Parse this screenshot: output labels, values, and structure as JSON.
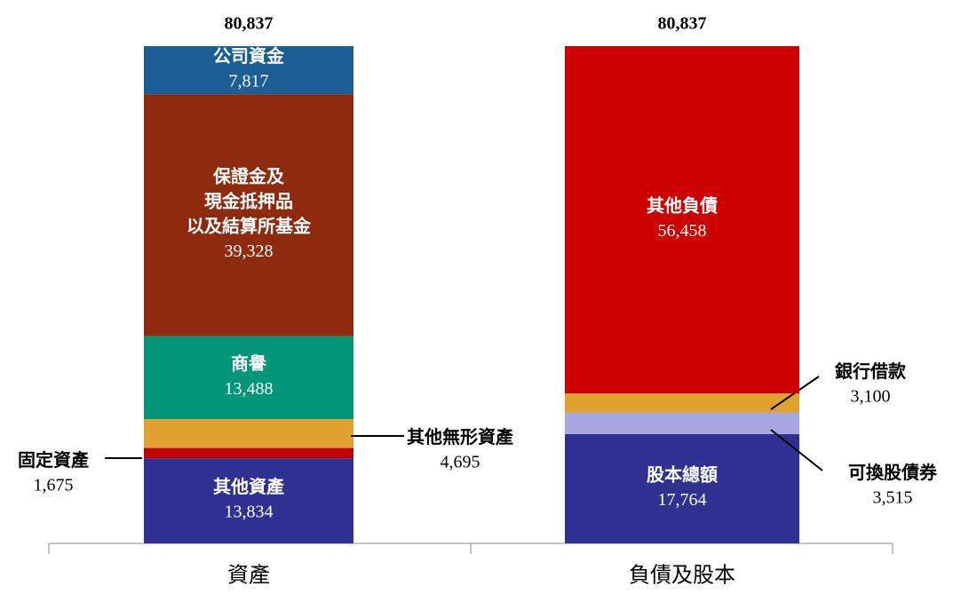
{
  "chart_data": {
    "type": "stacked_bar",
    "categories": [
      "資產",
      "負債及股本"
    ],
    "totals": [
      80837,
      80837
    ],
    "total_labels": [
      "80,837",
      "80,837"
    ],
    "ylim": [
      0,
      80837
    ],
    "series": [
      {
        "name": "其他資產",
        "color": "#2e3192",
        "values": [
          13834,
          null
        ],
        "value_labels": [
          "13,834",
          null
        ]
      },
      {
        "name": "固定資產",
        "color": "#c00000",
        "values": [
          1675,
          null
        ],
        "value_labels": [
          "1,675",
          null
        ]
      },
      {
        "name": "其他無形資產",
        "color": "#e0a22e",
        "values": [
          4695,
          null
        ],
        "value_labels": [
          "4,695",
          null
        ]
      },
      {
        "name": "商譽",
        "color": "#009677",
        "values": [
          13488,
          null
        ],
        "value_labels": [
          "13,488",
          null
        ]
      },
      {
        "name": "保證金及\n現金抵押品\n以及結算所基金",
        "color": "#8e2a0e",
        "values": [
          39328,
          null
        ],
        "value_labels": [
          "39,328",
          null
        ]
      },
      {
        "name": "公司資金",
        "color": "#1b5e96",
        "values": [
          7817,
          null
        ],
        "value_labels": [
          "7,817",
          null
        ]
      },
      {
        "name": "股本總額",
        "color": "#2e3192",
        "values": [
          null,
          17764
        ],
        "value_labels": [
          null,
          "17,764"
        ]
      },
      {
        "name": "可換股債券",
        "color": "#a7a7e0",
        "values": [
          null,
          3515
        ],
        "value_labels": [
          null,
          "3,515"
        ]
      },
      {
        "name": "銀行借款",
        "color": "#e0a22e",
        "values": [
          null,
          3100
        ],
        "value_labels": [
          null,
          "3,100"
        ]
      },
      {
        "name": "其他負債",
        "color": "#cc0000",
        "values": [
          null,
          56458
        ],
        "value_labels": [
          null,
          "56,458"
        ]
      }
    ]
  }
}
